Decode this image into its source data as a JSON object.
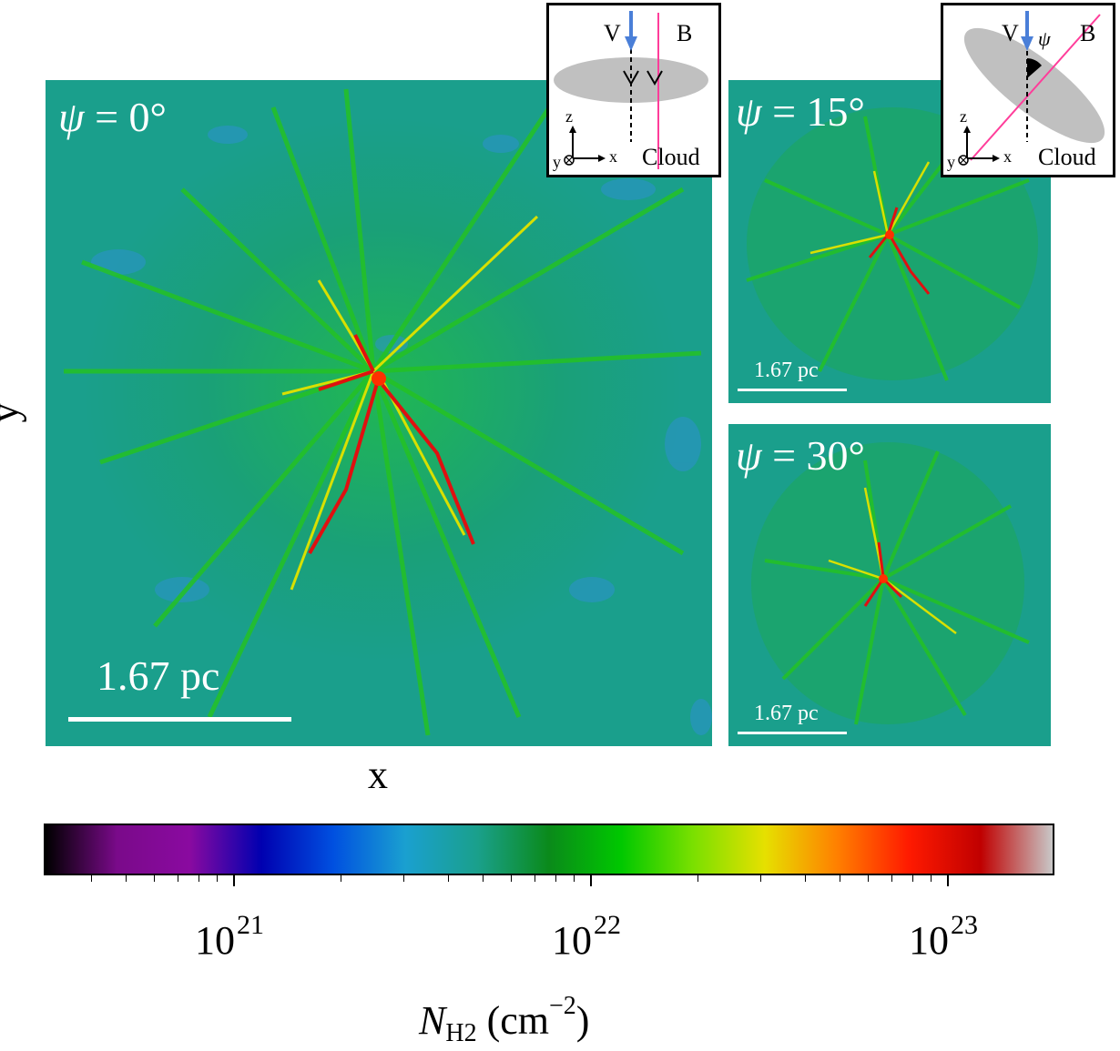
{
  "panels": {
    "main": {
      "psi_symbol": "ψ",
      "psi_value": "= 0°",
      "scale_label": "1.67 pc"
    },
    "top": {
      "psi_symbol": "ψ",
      "psi_value": "= 15°",
      "scale_label": "1.67 pc"
    },
    "bottom": {
      "psi_symbol": "ψ",
      "psi_value": "= 30°",
      "scale_label": "1.67 pc"
    }
  },
  "axes": {
    "x_label": "x",
    "y_label": "y"
  },
  "insets": {
    "left": {
      "v_label": "V",
      "b_label": "B",
      "cloud_label": "Cloud",
      "z_label": "z",
      "x_label": "x",
      "y_label": "y"
    },
    "right": {
      "v_label": "V",
      "b_label": "B",
      "psi_label": "ψ",
      "cloud_label": "Cloud",
      "z_label": "z",
      "x_label": "x",
      "y_label": "y"
    }
  },
  "colorbar": {
    "tick_base": "10",
    "tick_exponents": [
      "21",
      "22",
      "23"
    ],
    "title_symbol": "N",
    "title_subscript": "H2",
    "title_unit_open": " (cm",
    "title_unit_exp": "−2",
    "title_unit_close": ")",
    "scale": "log",
    "colors": [
      "#000000",
      "#7a0a8a",
      "#8a0aa0",
      "#0000b0",
      "#0050e0",
      "#1aa0d0",
      "#1aa08c",
      "#0a8a1a",
      "#00c800",
      "#7ae000",
      "#e6e000",
      "#ff8000",
      "#ff1a00",
      "#c00000",
      "#c8c8c8"
    ]
  }
}
